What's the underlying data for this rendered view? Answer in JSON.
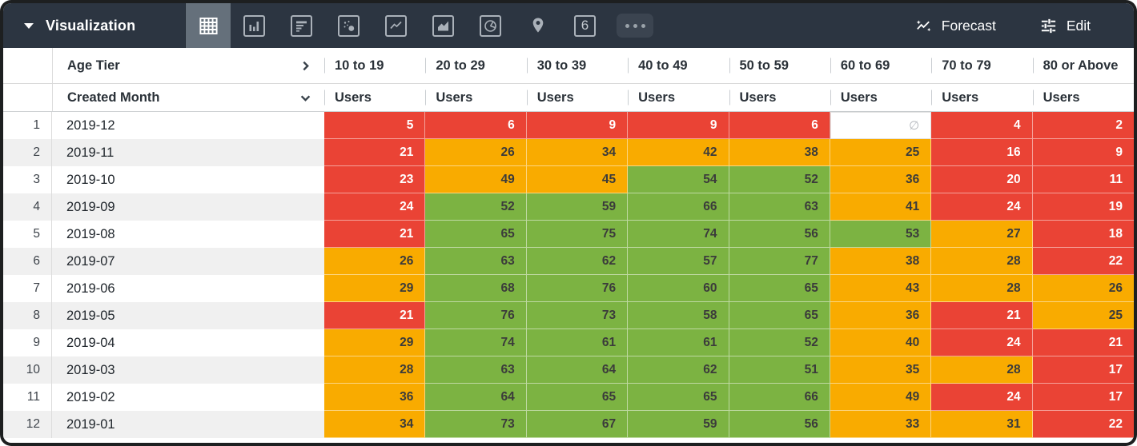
{
  "toolbar": {
    "title": "Visualization",
    "selected_vis": "table",
    "vis_types": [
      "table",
      "column-chart",
      "bar-chart",
      "scatter",
      "line-chart",
      "area-chart",
      "pie-chart",
      "map",
      "single-value",
      "more"
    ],
    "single_value_glyph": "6",
    "forecast_label": "Forecast",
    "edit_label": "Edit"
  },
  "table": {
    "pivot_header": "Age Tier",
    "row_header": "Created Month",
    "measure_label": "Users",
    "age_tiers": [
      "10 to 19",
      "20 to 29",
      "30 to 39",
      "40 to 49",
      "50 to 59",
      "60 to 69",
      "70 to 79",
      "80 or Above"
    ],
    "null_symbol": "∅",
    "rows": [
      {
        "num": "1",
        "month": "2019-12",
        "values": [
          {
            "v": "5",
            "c": "red"
          },
          {
            "v": "6",
            "c": "red"
          },
          {
            "v": "9",
            "c": "red"
          },
          {
            "v": "9",
            "c": "red"
          },
          {
            "v": "6",
            "c": "red"
          },
          {
            "v": "∅",
            "c": "null"
          },
          {
            "v": "4",
            "c": "red"
          },
          {
            "v": "2",
            "c": "red"
          }
        ]
      },
      {
        "num": "2",
        "month": "2019-11",
        "values": [
          {
            "v": "21",
            "c": "red"
          },
          {
            "v": "26",
            "c": "orange"
          },
          {
            "v": "34",
            "c": "orange"
          },
          {
            "v": "42",
            "c": "orange"
          },
          {
            "v": "38",
            "c": "orange"
          },
          {
            "v": "25",
            "c": "orange"
          },
          {
            "v": "16",
            "c": "red"
          },
          {
            "v": "9",
            "c": "red"
          }
        ]
      },
      {
        "num": "3",
        "month": "2019-10",
        "values": [
          {
            "v": "23",
            "c": "red"
          },
          {
            "v": "49",
            "c": "orange"
          },
          {
            "v": "45",
            "c": "orange"
          },
          {
            "v": "54",
            "c": "green"
          },
          {
            "v": "52",
            "c": "green"
          },
          {
            "v": "36",
            "c": "orange"
          },
          {
            "v": "20",
            "c": "red"
          },
          {
            "v": "11",
            "c": "red"
          }
        ]
      },
      {
        "num": "4",
        "month": "2019-09",
        "values": [
          {
            "v": "24",
            "c": "red"
          },
          {
            "v": "52",
            "c": "green"
          },
          {
            "v": "59",
            "c": "green"
          },
          {
            "v": "66",
            "c": "green"
          },
          {
            "v": "63",
            "c": "green"
          },
          {
            "v": "41",
            "c": "orange"
          },
          {
            "v": "24",
            "c": "red"
          },
          {
            "v": "19",
            "c": "red"
          }
        ]
      },
      {
        "num": "5",
        "month": "2019-08",
        "values": [
          {
            "v": "21",
            "c": "red"
          },
          {
            "v": "65",
            "c": "green"
          },
          {
            "v": "75",
            "c": "green"
          },
          {
            "v": "74",
            "c": "green"
          },
          {
            "v": "56",
            "c": "green"
          },
          {
            "v": "53",
            "c": "green"
          },
          {
            "v": "27",
            "c": "orange"
          },
          {
            "v": "18",
            "c": "red"
          }
        ]
      },
      {
        "num": "6",
        "month": "2019-07",
        "values": [
          {
            "v": "26",
            "c": "orange"
          },
          {
            "v": "63",
            "c": "green"
          },
          {
            "v": "62",
            "c": "green"
          },
          {
            "v": "57",
            "c": "green"
          },
          {
            "v": "77",
            "c": "green"
          },
          {
            "v": "38",
            "c": "orange"
          },
          {
            "v": "28",
            "c": "orange"
          },
          {
            "v": "22",
            "c": "red"
          }
        ]
      },
      {
        "num": "7",
        "month": "2019-06",
        "values": [
          {
            "v": "29",
            "c": "orange"
          },
          {
            "v": "68",
            "c": "green"
          },
          {
            "v": "76",
            "c": "green"
          },
          {
            "v": "60",
            "c": "green"
          },
          {
            "v": "65",
            "c": "green"
          },
          {
            "v": "43",
            "c": "orange"
          },
          {
            "v": "28",
            "c": "orange"
          },
          {
            "v": "26",
            "c": "orange"
          }
        ]
      },
      {
        "num": "8",
        "month": "2019-05",
        "values": [
          {
            "v": "21",
            "c": "red"
          },
          {
            "v": "76",
            "c": "green"
          },
          {
            "v": "73",
            "c": "green"
          },
          {
            "v": "58",
            "c": "green"
          },
          {
            "v": "65",
            "c": "green"
          },
          {
            "v": "36",
            "c": "orange"
          },
          {
            "v": "21",
            "c": "red"
          },
          {
            "v": "25",
            "c": "orange"
          }
        ]
      },
      {
        "num": "9",
        "month": "2019-04",
        "values": [
          {
            "v": "29",
            "c": "orange"
          },
          {
            "v": "74",
            "c": "green"
          },
          {
            "v": "61",
            "c": "green"
          },
          {
            "v": "61",
            "c": "green"
          },
          {
            "v": "52",
            "c": "green"
          },
          {
            "v": "40",
            "c": "orange"
          },
          {
            "v": "24",
            "c": "red"
          },
          {
            "v": "21",
            "c": "red"
          }
        ]
      },
      {
        "num": "10",
        "month": "2019-03",
        "values": [
          {
            "v": "28",
            "c": "orange"
          },
          {
            "v": "63",
            "c": "green"
          },
          {
            "v": "64",
            "c": "green"
          },
          {
            "v": "62",
            "c": "green"
          },
          {
            "v": "51",
            "c": "green"
          },
          {
            "v": "35",
            "c": "orange"
          },
          {
            "v": "28",
            "c": "orange"
          },
          {
            "v": "17",
            "c": "red"
          }
        ]
      },
      {
        "num": "11",
        "month": "2019-02",
        "values": [
          {
            "v": "36",
            "c": "orange"
          },
          {
            "v": "64",
            "c": "green"
          },
          {
            "v": "65",
            "c": "green"
          },
          {
            "v": "65",
            "c": "green"
          },
          {
            "v": "66",
            "c": "green"
          },
          {
            "v": "49",
            "c": "orange"
          },
          {
            "v": "24",
            "c": "red"
          },
          {
            "v": "17",
            "c": "red"
          }
        ]
      },
      {
        "num": "12",
        "month": "2019-01",
        "values": [
          {
            "v": "34",
            "c": "orange"
          },
          {
            "v": "73",
            "c": "green"
          },
          {
            "v": "67",
            "c": "green"
          },
          {
            "v": "59",
            "c": "green"
          },
          {
            "v": "56",
            "c": "green"
          },
          {
            "v": "33",
            "c": "orange"
          },
          {
            "v": "31",
            "c": "orange"
          },
          {
            "v": "22",
            "c": "red"
          }
        ]
      }
    ]
  },
  "colors": {
    "red": "#ea4335",
    "orange": "#f9ab00",
    "green": "#7cb342",
    "topbar": "#2c3541"
  }
}
